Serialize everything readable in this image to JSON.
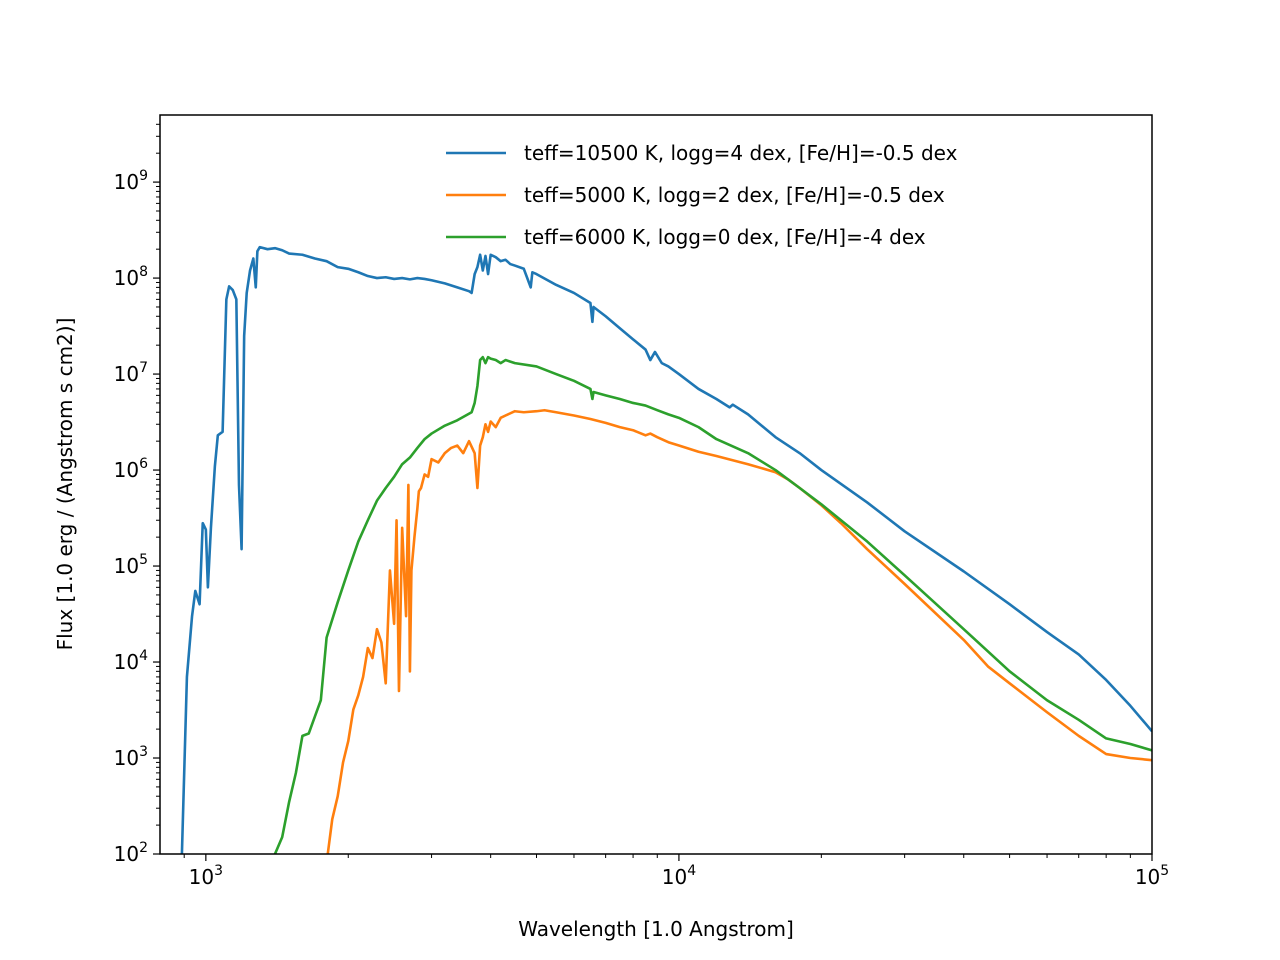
{
  "chart_data": {
    "type": "line",
    "title": "",
    "xlabel": "Wavelength [1.0 Angstrom]",
    "ylabel": "Flux [1.0 erg / (Angstrom s cm2)]",
    "xscale": "log",
    "yscale": "log",
    "xlim": [
      800,
      100000
    ],
    "ylim": [
      100,
      5000000000
    ],
    "grid": false,
    "legend_position": "top-right",
    "x_ticks": [
      {
        "value": 1000,
        "base": "10",
        "exp": "3"
      },
      {
        "value": 10000,
        "base": "10",
        "exp": "4"
      },
      {
        "value": 100000,
        "base": "10",
        "exp": "5"
      }
    ],
    "y_ticks": [
      {
        "value": 100,
        "base": "10",
        "exp": "2"
      },
      {
        "value": 1000,
        "base": "10",
        "exp": "3"
      },
      {
        "value": 10000,
        "base": "10",
        "exp": "4"
      },
      {
        "value": 100000,
        "base": "10",
        "exp": "5"
      },
      {
        "value": 1000000,
        "base": "10",
        "exp": "6"
      },
      {
        "value": 10000000,
        "base": "10",
        "exp": "7"
      },
      {
        "value": 100000000,
        "base": "10",
        "exp": "8"
      },
      {
        "value": 1000000000,
        "base": "10",
        "exp": "9"
      }
    ],
    "series": [
      {
        "name": "teff=10500 K, logg=4 dex, [Fe/H]=-0.5 dex",
        "color": "#1f77b4",
        "x": [
          890,
          912,
          935,
          950,
          970,
          985,
          1000,
          1010,
          1025,
          1045,
          1060,
          1085,
          1105,
          1120,
          1140,
          1160,
          1175,
          1190,
          1205,
          1220,
          1240,
          1260,
          1275,
          1285,
          1300,
          1350,
          1400,
          1450,
          1500,
          1600,
          1700,
          1800,
          1900,
          2000,
          2100,
          2200,
          2300,
          2400,
          2500,
          2600,
          2700,
          2800,
          2900,
          3000,
          3200,
          3400,
          3600,
          3646,
          3700,
          3750,
          3800,
          3850,
          3900,
          3950,
          4000,
          4100,
          4200,
          4300,
          4400,
          4500,
          4700,
          4861,
          4900,
          5000,
          5500,
          6000,
          6500,
          6563,
          6600,
          7000,
          7500,
          8000,
          8500,
          8700,
          8900,
          9200,
          9500,
          10000,
          11000,
          12000,
          12800,
          13000,
          14000,
          16000,
          18000,
          20000,
          25000,
          30000,
          40000,
          50000,
          60000,
          70000,
          80000,
          90000,
          100000
        ],
        "y": [
          100,
          7000,
          30000,
          55000,
          40000,
          280000,
          240000,
          60000,
          250000,
          1100000,
          2300000,
          2500000,
          60000000,
          82000000,
          75000000,
          60000000,
          700000,
          150000,
          25000000,
          70000000,
          120000000,
          160000000,
          80000000,
          190000000,
          210000000,
          200000000,
          205000000,
          195000000,
          180000000,
          175000000,
          160000000,
          150000000,
          130000000,
          125000000,
          115000000,
          105000000,
          100000000,
          102000000,
          98000000,
          100000000,
          97000000,
          100000000,
          98000000,
          95000000,
          88000000,
          80000000,
          73000000,
          70000000,
          110000000,
          130000000,
          175000000,
          120000000,
          170000000,
          110000000,
          175000000,
          165000000,
          150000000,
          155000000,
          140000000,
          135000000,
          125000000,
          80000000,
          115000000,
          110000000,
          85000000,
          70000000,
          55000000,
          35000000,
          50000000,
          40000000,
          30000000,
          23000000,
          18000000,
          14000000,
          17000000,
          13000000,
          12000000,
          10000000,
          7000000,
          5500000,
          4500000,
          4800000,
          3800000,
          2200000,
          1500000,
          1000000,
          460000,
          230000,
          88000,
          40000,
          20500,
          12000,
          6500,
          3500,
          1900
        ]
      },
      {
        "name": "teff=5000 K, logg=2 dex, [Fe/H]=-0.5 dex",
        "color": "#ff7f0e",
        "x": [
          1810,
          1850,
          1900,
          1950,
          2000,
          2050,
          2100,
          2150,
          2200,
          2250,
          2300,
          2350,
          2400,
          2450,
          2500,
          2530,
          2560,
          2600,
          2650,
          2680,
          2700,
          2720,
          2760,
          2800,
          2820,
          2850,
          2900,
          2950,
          3000,
          3100,
          3200,
          3300,
          3400,
          3500,
          3600,
          3700,
          3750,
          3800,
          3850,
          3900,
          3950,
          4000,
          4100,
          4200,
          4300,
          4500,
          4700,
          5000,
          5200,
          5500,
          6000,
          6500,
          7000,
          7500,
          8000,
          8500,
          8700,
          9000,
          9500,
          10000,
          11000,
          12000,
          14000,
          16000,
          17000,
          18000,
          20000,
          22000,
          25000,
          30000,
          40000,
          45000,
          50000,
          60000,
          70000,
          80000,
          90000,
          100000
        ],
        "y": [
          100,
          230,
          400,
          900,
          1500,
          3200,
          4500,
          7000,
          14000,
          11000,
          22000,
          16000,
          6000,
          90000,
          25000,
          300000,
          5000,
          250000,
          30000,
          700000,
          8000,
          90000,
          200000,
          400000,
          600000,
          650000,
          900000,
          850000,
          1300000,
          1200000,
          1500000,
          1700000,
          1800000,
          1500000,
          2000000,
          1500000,
          650000,
          1800000,
          2200000,
          3000000,
          2500000,
          3200000,
          2800000,
          3500000,
          3700000,
          4100000,
          4000000,
          4100000,
          4200000,
          4000000,
          3700000,
          3400000,
          3100000,
          2800000,
          2600000,
          2300000,
          2400000,
          2200000,
          1950000,
          1800000,
          1550000,
          1400000,
          1150000,
          950000,
          800000,
          650000,
          430000,
          280000,
          150000,
          65000,
          17000,
          9000,
          6000,
          3000,
          1700,
          1100,
          1000,
          950
        ]
      },
      {
        "name": "teff=6000 K, logg=0 dex, [Fe/H]=-4 dex",
        "color": "#2ca02c",
        "x": [
          1400,
          1450,
          1500,
          1550,
          1600,
          1650,
          1700,
          1750,
          1800,
          1900,
          2000,
          2100,
          2200,
          2300,
          2400,
          2500,
          2600,
          2700,
          2800,
          2900,
          3000,
          3200,
          3400,
          3646,
          3700,
          3750,
          3800,
          3850,
          3900,
          3950,
          4000,
          4100,
          4200,
          4300,
          4500,
          5000,
          5500,
          6000,
          6500,
          6563,
          6600,
          7000,
          7500,
          8000,
          8500,
          9000,
          9500,
          10000,
          11000,
          12000,
          14000,
          16000,
          18000,
          20000,
          25000,
          30000,
          40000,
          50000,
          60000,
          70000,
          80000,
          90000,
          100000
        ],
        "y": [
          100,
          150,
          350,
          700,
          1700,
          1800,
          2700,
          4000,
          18000,
          42000,
          90000,
          180000,
          300000,
          480000,
          650000,
          850000,
          1150000,
          1350000,
          1700000,
          2100000,
          2400000,
          2900000,
          3300000,
          4000000,
          5000000,
          7500000,
          14000000,
          15000000,
          13000000,
          15000000,
          14500000,
          14000000,
          13000000,
          14000000,
          13000000,
          12000000,
          10000000,
          8500000,
          7000000,
          5500000,
          6500000,
          6000000,
          5500000,
          5000000,
          4700000,
          4200000,
          3800000,
          3500000,
          2800000,
          2100000,
          1500000,
          1000000,
          650000,
          440000,
          180000,
          80000,
          22000,
          8000,
          4000,
          2500,
          1600,
          1400,
          1200
        ]
      }
    ]
  }
}
